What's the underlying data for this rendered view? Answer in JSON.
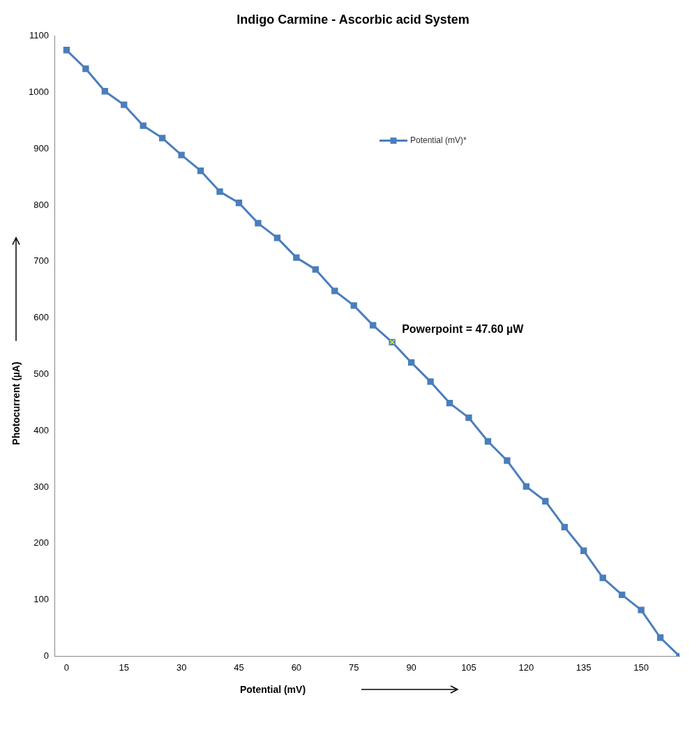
{
  "chart_data": {
    "type": "line",
    "title": "Indigo Carmine - Ascorbic acid System",
    "xlabel": "Potential (mV)",
    "ylabel": "Photocurrent (µA)",
    "x": [
      0,
      5,
      10,
      15,
      20,
      25,
      30,
      35,
      40,
      45,
      50,
      55,
      60,
      65,
      70,
      75,
      80,
      85,
      90,
      95,
      100,
      105,
      110,
      115,
      120,
      125,
      130,
      135,
      140,
      145,
      150,
      155,
      160
    ],
    "series": [
      {
        "name": "Potential (mV)*",
        "color": "#4a7ebb",
        "values": [
          1075,
          1042,
          1002,
          978,
          941,
          919,
          889,
          861,
          824,
          804,
          768,
          742,
          707,
          686,
          648,
          622,
          587,
          557,
          521,
          487,
          449,
          423,
          381,
          347,
          301,
          275,
          229,
          187,
          139,
          109,
          82,
          33,
          0
        ]
      }
    ],
    "xlim": [
      -3,
      160
    ],
    "xticks": [
      0,
      15,
      30,
      45,
      60,
      75,
      90,
      105,
      120,
      135,
      150
    ],
    "ylim": [
      0,
      1100
    ],
    "yticks": [
      0,
      100,
      200,
      300,
      400,
      500,
      600,
      700,
      800,
      900,
      1000,
      1100
    ],
    "annotations": [
      {
        "text": "Powerpoint = 47.60 µW",
        "x": 85,
        "y": 557
      }
    ],
    "grid": false,
    "legend": "top right",
    "marker": "square",
    "line_style": "solid"
  }
}
